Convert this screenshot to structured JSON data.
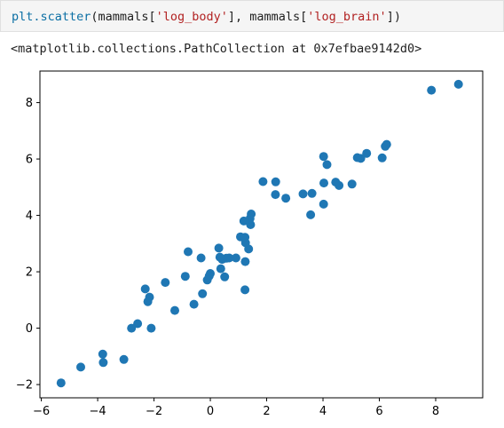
{
  "notebook": {
    "input_code": {
      "fn": "plt.scatter",
      "open_paren": "(",
      "arg1_var": "mammals[",
      "arg1_key": "'log_body'",
      "arg1_close": "], ",
      "arg2_var": "mammals[",
      "arg2_key": "'log_brain'",
      "arg2_close": "])"
    },
    "output_text": "<matplotlib.collections.PathCollection at 0x7efbae9142d0>"
  },
  "colors": {
    "point": "#1f77b4",
    "code_function": "#0b6fa4",
    "code_string": "#b22222"
  },
  "chart_data": {
    "type": "scatter",
    "title": "",
    "xlabel": "",
    "ylabel": "",
    "xlim": [
      -6.05,
      9.67
    ],
    "ylim": [
      -2.47,
      9.12
    ],
    "xticks": [
      -6,
      -4,
      -2,
      0,
      2,
      4,
      6,
      8
    ],
    "yticks": [
      -2,
      0,
      2,
      4,
      6,
      8
    ],
    "xtick_labels": [
      "−6",
      "−4",
      "−2",
      "0",
      "2",
      "4",
      "6",
      "8"
    ],
    "ytick_labels": [
      "−2",
      "0",
      "2",
      "4",
      "6",
      "8"
    ],
    "grid": false,
    "series": [
      {
        "x": [
          8.81,
          7.85,
          6.26,
          6.21,
          6.1,
          5.55,
          5.34,
          5.22,
          5.03,
          4.57,
          4.45,
          4.14,
          4.03,
          4.02,
          4.02,
          3.61,
          3.56,
          3.29,
          2.68,
          2.32,
          2.31,
          1.87,
          1.45,
          1.43,
          1.41,
          1.36,
          1.25,
          1.24,
          1.19,
          1.07,
          1.23,
          1.23,
          0.91,
          0.67,
          0.57,
          0.51,
          0.42,
          0.37,
          0.34,
          0.3,
          0.0,
          -0.04,
          -0.11,
          -0.28,
          -0.33,
          -0.58,
          -0.79,
          -0.89,
          -1.26,
          -1.6,
          -2.1,
          -2.16,
          -2.22,
          -2.31,
          -2.58,
          -2.8,
          -3.07,
          -3.8,
          -3.82,
          -4.6,
          -5.3
        ],
        "y": [
          8.65,
          8.44,
          6.52,
          6.45,
          6.04,
          6.2,
          6.02,
          6.05,
          5.11,
          5.06,
          5.18,
          5.8,
          5.15,
          4.4,
          6.09,
          4.78,
          4.02,
          4.76,
          4.61,
          5.19,
          4.74,
          5.2,
          4.05,
          3.67,
          3.89,
          2.81,
          3.03,
          2.36,
          3.8,
          3.24,
          1.36,
          3.22,
          2.49,
          2.49,
          2.48,
          1.82,
          2.44,
          2.11,
          2.52,
          2.84,
          1.94,
          1.85,
          1.71,
          1.22,
          2.49,
          0.85,
          2.71,
          1.84,
          0.63,
          1.62,
          0.0,
          1.1,
          0.94,
          1.39,
          0.16,
          0.0,
          -1.11,
          -1.22,
          -0.92,
          -1.38,
          -1.94
        ]
      }
    ]
  }
}
